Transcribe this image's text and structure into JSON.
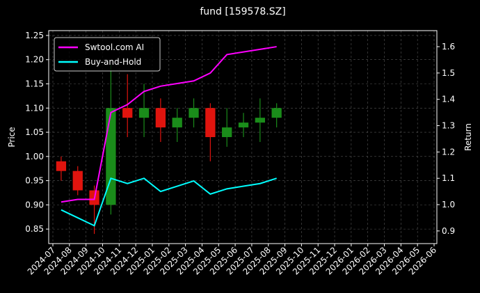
{
  "chart_data": {
    "type": "candlestick",
    "title": "fund [159578.SZ]",
    "y_label": "Price",
    "y2_label": "Return",
    "x": [
      "2024-07",
      "2024-08",
      "2024-09",
      "2024-10",
      "2024-11",
      "2024-12",
      "2025-01",
      "2025-02",
      "2025-03",
      "2025-04",
      "2025-05",
      "2025-06",
      "2025-07",
      "2025-08"
    ],
    "open": [
      0.99,
      0.97,
      0.93,
      0.9,
      1.1,
      1.08,
      1.1,
      1.06,
      1.08,
      1.1,
      1.04,
      1.06,
      1.07,
      1.08
    ],
    "high": [
      1.0,
      0.98,
      0.94,
      1.19,
      1.17,
      1.15,
      1.12,
      1.1,
      1.12,
      1.11,
      1.1,
      1.09,
      1.12,
      1.11
    ],
    "low": [
      0.95,
      0.92,
      0.84,
      0.88,
      1.04,
      1.04,
      1.03,
      1.03,
      1.06,
      0.99,
      1.02,
      1.04,
      1.03,
      1.06
    ],
    "close": [
      0.97,
      0.93,
      0.9,
      1.1,
      1.08,
      1.1,
      1.06,
      1.08,
      1.1,
      1.04,
      1.06,
      1.07,
      1.08,
      1.1
    ],
    "up_color": "#1a8c1a",
    "down_color": "#e0140e",
    "series": [
      {
        "name": "Swtool.com AI",
        "color": "#ff00ff",
        "axis": "y2",
        "values": [
          1.01,
          1.02,
          1.02,
          1.35,
          1.38,
          1.43,
          1.45,
          1.46,
          1.47,
          1.5,
          1.57,
          1.58,
          1.59,
          1.6
        ]
      },
      {
        "name": "Buy-and-Hold",
        "color": "#00ffff",
        "axis": "y2",
        "values": [
          0.98,
          0.95,
          0.92,
          1.1,
          1.08,
          1.1,
          1.05,
          1.07,
          1.09,
          1.04,
          1.06,
          1.07,
          1.08,
          1.1
        ]
      }
    ],
    "xlim": [
      "2024-07",
      "2026-06"
    ],
    "xticks": [
      "2024-07",
      "2024-08",
      "2024-09",
      "2024-10",
      "2024-11",
      "2024-12",
      "2025-01",
      "2025-02",
      "2025-03",
      "2025-04",
      "2025-05",
      "2025-06",
      "2025-07",
      "2025-08",
      "2025-09",
      "2025-10",
      "2025-11",
      "2025-12",
      "2026-01",
      "2026-02",
      "2026-03",
      "2026-04",
      "2026-05",
      "2026-06"
    ],
    "ylim": [
      0.82,
      1.26
    ],
    "yticks": [
      {
        "value": 0.85,
        "label": "0.85"
      },
      {
        "value": 0.9,
        "label": "0.90"
      },
      {
        "value": 0.95,
        "label": "0.95"
      },
      {
        "value": 1.0,
        "label": "1.00"
      },
      {
        "value": 1.05,
        "label": "1.05"
      },
      {
        "value": 1.1,
        "label": "1.10"
      },
      {
        "value": 1.15,
        "label": "1.15"
      },
      {
        "value": 1.2,
        "label": "1.20"
      },
      {
        "value": 1.25,
        "label": "1.25"
      }
    ],
    "y2lim": [
      0.852,
      1.661
    ],
    "y2ticks": [
      {
        "value": 0.9,
        "label": "0.9"
      },
      {
        "value": 1.0,
        "label": "1.0"
      },
      {
        "value": 1.1,
        "label": "1.1"
      },
      {
        "value": 1.2,
        "label": "1.2"
      },
      {
        "value": 1.3,
        "label": "1.3"
      },
      {
        "value": 1.4,
        "label": "1.4"
      },
      {
        "value": 1.5,
        "label": "1.5"
      },
      {
        "value": 1.6,
        "label": "1.6"
      }
    ],
    "grid": true,
    "legend": "upper left"
  }
}
